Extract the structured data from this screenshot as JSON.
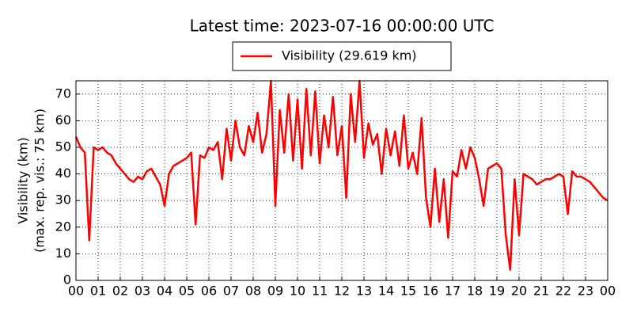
{
  "chart_data": {
    "type": "line",
    "title": "Latest time: 2023-07-16 00:00:00 UTC",
    "y_label": [
      "Visibility (km)",
      "(max. rep. vis.: 75 km)"
    ],
    "x": [
      0,
      0.2,
      0.4,
      0.6,
      0.8,
      1,
      1.2,
      1.4,
      1.6,
      1.8,
      2,
      2.2,
      2.4,
      2.6,
      2.8,
      3,
      3.2,
      3.4,
      3.6,
      3.8,
      4,
      4.2,
      4.4,
      4.6,
      4.8,
      5,
      5.2,
      5.4,
      5.6,
      5.8,
      6,
      6.2,
      6.4,
      6.6,
      6.8,
      7,
      7.2,
      7.4,
      7.6,
      7.8,
      8,
      8.2,
      8.4,
      8.6,
      8.8,
      9,
      9.2,
      9.4,
      9.6,
      9.8,
      10,
      10.2,
      10.4,
      10.6,
      10.8,
      11,
      11.2,
      11.4,
      11.6,
      11.8,
      12,
      12.2,
      12.4,
      12.6,
      12.8,
      13,
      13.2,
      13.4,
      13.6,
      13.8,
      14,
      14.2,
      14.4,
      14.6,
      14.8,
      15,
      15.2,
      15.4,
      15.6,
      15.8,
      16,
      16.2,
      16.4,
      16.6,
      16.8,
      17,
      17.2,
      17.4,
      17.6,
      17.8,
      18,
      18.2,
      18.4,
      18.6,
      18.8,
      19,
      19.2,
      19.4,
      19.6,
      19.8,
      20,
      20.2,
      20.4,
      20.6,
      20.8,
      21,
      21.2,
      21.4,
      21.6,
      21.8,
      22,
      22.2,
      22.4,
      22.6,
      22.8,
      23,
      23.2,
      23.4,
      23.6,
      23.8,
      24
    ],
    "series": [
      {
        "name": "Visibility (29.619 km)",
        "color": "#ff0000",
        "values": [
          54,
          50,
          48,
          15,
          50,
          49,
          50,
          48,
          47,
          44,
          42,
          40,
          38,
          37,
          39,
          38,
          41,
          42,
          39,
          36,
          28,
          40,
          43,
          44,
          45,
          46,
          48,
          21,
          47,
          46,
          50,
          49,
          52,
          38,
          57,
          45,
          60,
          50,
          47,
          58,
          52,
          63,
          48,
          55,
          75,
          28,
          64,
          48,
          70,
          45,
          68,
          42,
          72,
          47,
          71,
          44,
          62,
          50,
          69,
          47,
          58,
          31,
          70,
          52,
          75,
          46,
          59,
          51,
          55,
          40,
          57,
          47,
          56,
          43,
          62,
          42,
          48,
          40,
          61,
          31,
          20,
          42,
          22,
          38,
          16,
          41,
          39,
          49,
          42,
          50,
          46,
          38,
          28,
          42,
          43,
          44,
          42,
          17,
          4,
          38,
          17,
          40,
          39,
          38,
          36,
          37,
          38,
          38,
          39,
          40,
          39,
          25,
          41,
          39,
          39,
          38,
          37,
          35,
          33,
          31,
          30
        ]
      }
    ],
    "xlim": [
      0,
      24
    ],
    "xticks": [
      {
        "value": 0,
        "label": "00"
      },
      {
        "value": 1,
        "label": "01"
      },
      {
        "value": 2,
        "label": "02"
      },
      {
        "value": 3,
        "label": "03"
      },
      {
        "value": 4,
        "label": "04"
      },
      {
        "value": 5,
        "label": "05"
      },
      {
        "value": 6,
        "label": "06"
      },
      {
        "value": 7,
        "label": "07"
      },
      {
        "value": 8,
        "label": "08"
      },
      {
        "value": 9,
        "label": "09"
      },
      {
        "value": 10,
        "label": "10"
      },
      {
        "value": 11,
        "label": "11"
      },
      {
        "value": 12,
        "label": "12"
      },
      {
        "value": 13,
        "label": "13"
      },
      {
        "value": 14,
        "label": "14"
      },
      {
        "value": 15,
        "label": "15"
      },
      {
        "value": 16,
        "label": "16"
      },
      {
        "value": 17,
        "label": "17"
      },
      {
        "value": 18,
        "label": "18"
      },
      {
        "value": 19,
        "label": "19"
      },
      {
        "value": 20,
        "label": "20"
      },
      {
        "value": 21,
        "label": "21"
      },
      {
        "value": 22,
        "label": "22"
      },
      {
        "value": 23,
        "label": "23"
      },
      {
        "value": 24,
        "label": "00"
      }
    ],
    "ylim": [
      0,
      75
    ],
    "yticks": [
      0,
      10,
      20,
      30,
      40,
      50,
      60,
      70
    ],
    "grid": true,
    "legend": "top"
  }
}
